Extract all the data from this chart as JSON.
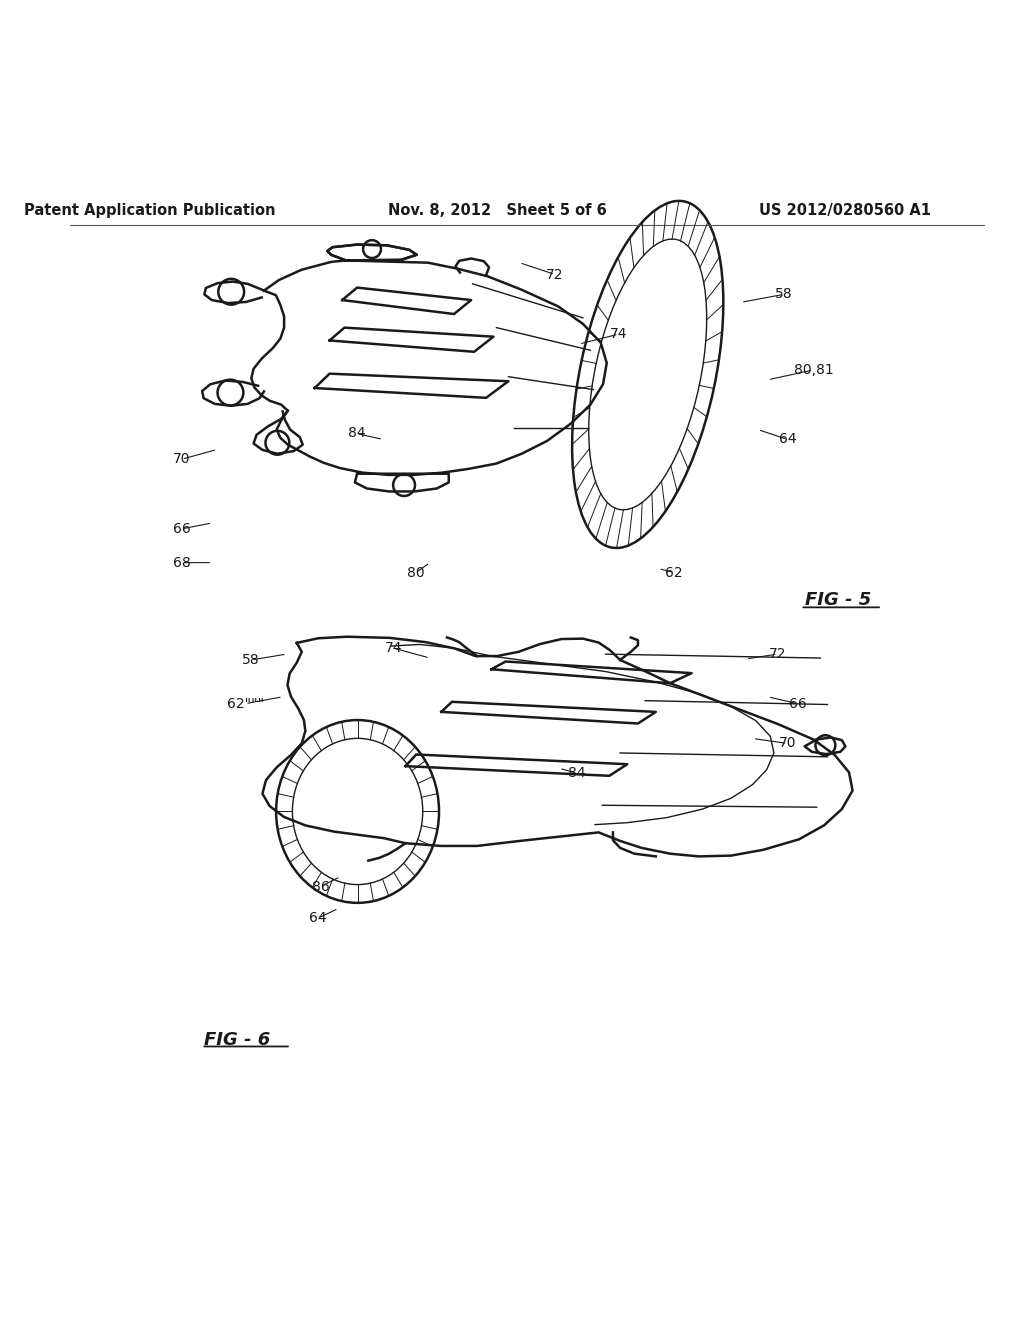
{
  "bg_color": "#ffffff",
  "header_left": "Patent Application Publication",
  "header_center": "Nov. 8, 2012   Sheet 5 of 6",
  "header_right": "US 2012/0280560 A1",
  "fig5_label": "FIG - 5",
  "fig6_label": "FIG - 6",
  "line_color": "#1a1a1a",
  "text_color": "#1a1a1a",
  "header_font_size": 10.5,
  "label_font_size": 10,
  "fig_label_font_size": 13
}
